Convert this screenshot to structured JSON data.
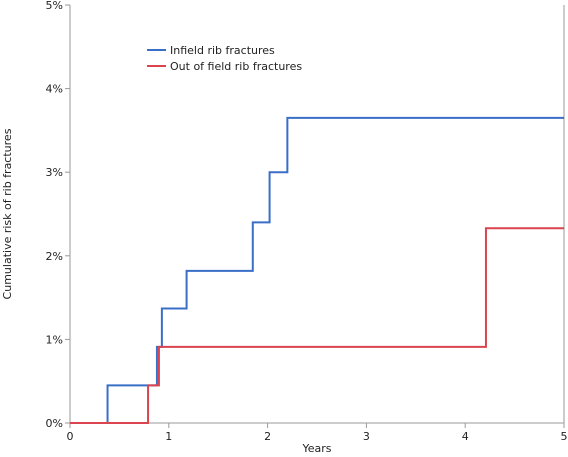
{
  "chart_data": {
    "type": "line",
    "step": true,
    "title": "",
    "xlabel": "Years",
    "ylabel": "Cumulative risk of rib fractures",
    "xlim": [
      0,
      5
    ],
    "ylim": [
      0,
      5
    ],
    "x_ticks": [
      0,
      1,
      2,
      3,
      4,
      5
    ],
    "x_tick_labels": [
      "0",
      "1",
      "2",
      "3",
      "4",
      "5"
    ],
    "y_ticks": [
      0,
      1,
      2,
      3,
      4,
      5
    ],
    "y_tick_labels": [
      "0%",
      "1%",
      "2%",
      "3%",
      "4%",
      "5%"
    ],
    "grid": false,
    "legend_position": "top-left",
    "series": [
      {
        "name": "Infield rib fractures",
        "color": "#3a6fc8",
        "x": [
          0,
          0.38,
          0.88,
          0.93,
          1.18,
          1.85,
          2.02,
          2.2,
          5
        ],
        "y": [
          0,
          0.45,
          0.91,
          1.37,
          1.82,
          2.4,
          3.0,
          3.65,
          3.65
        ]
      },
      {
        "name": "Out of field rib fractures",
        "color": "#d9444f",
        "x": [
          0,
          0.79,
          0.9,
          4.21,
          5
        ],
        "y": [
          0,
          0.45,
          0.91,
          2.33,
          2.33
        ]
      }
    ]
  }
}
